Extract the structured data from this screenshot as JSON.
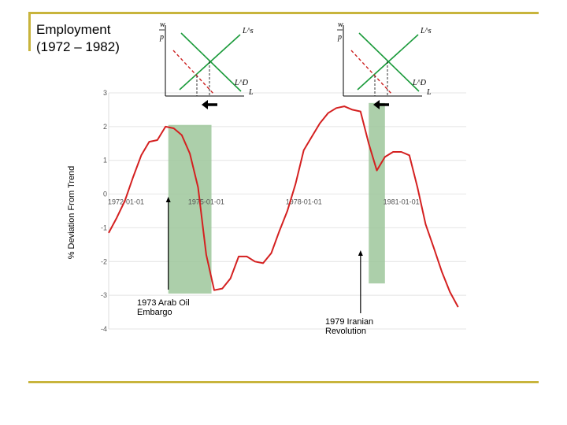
{
  "title_line1": "Employment",
  "title_line2": "(1972 – 1982)",
  "colors": {
    "line": "#d42020",
    "shade": "#9dc79b",
    "rule": "#c8b43c",
    "supply": "#1a9a3a",
    "demand": "#1a9a3a",
    "shifted_demand": "#cc2222"
  },
  "chart_data": {
    "type": "line",
    "title": "Employment (1972 – 1982)",
    "ylabel": "% Deviation From Trend",
    "xlabel": "",
    "ylim": [
      -4,
      3
    ],
    "yticks": [
      3,
      2,
      1,
      0,
      -1,
      -2,
      -3,
      -4
    ],
    "xlim": [
      "1972-01-01",
      "1982-12-31"
    ],
    "xticks": [
      "1972-01-01",
      "1975-01-01",
      "1978-01-01",
      "1981-01-01"
    ],
    "grid": true,
    "series": [
      {
        "x": [
          "1972-01-01",
          "1972-04-01",
          "1972-07-01",
          "1972-10-01",
          "1973-01-01",
          "1973-04-01",
          "1973-07-01",
          "1973-10-01",
          "1974-01-01",
          "1974-04-01",
          "1974-07-01",
          "1974-10-01",
          "1975-01-01",
          "1975-04-01",
          "1975-07-01",
          "1975-10-01",
          "1976-01-01",
          "1976-04-01",
          "1976-07-01",
          "1976-10-01",
          "1977-01-01",
          "1977-04-01",
          "1977-07-01",
          "1977-10-01",
          "1978-01-01",
          "1978-04-01",
          "1978-07-01",
          "1978-10-01",
          "1979-01-01",
          "1979-04-01",
          "1979-07-01",
          "1979-10-01",
          "1980-01-01",
          "1980-04-01",
          "1980-07-01",
          "1980-10-01",
          "1981-01-01",
          "1981-04-01",
          "1981-07-01",
          "1981-10-01",
          "1982-01-01",
          "1982-04-01",
          "1982-07-01",
          "1982-10-01"
        ],
        "values": [
          -1.15,
          -0.7,
          -0.2,
          0.5,
          1.15,
          1.55,
          1.6,
          2.0,
          1.95,
          1.75,
          1.2,
          0.2,
          -1.8,
          -2.85,
          -2.8,
          -2.5,
          -1.85,
          -1.85,
          -2.0,
          -2.05,
          -1.75,
          -1.1,
          -0.5,
          0.3,
          1.3,
          1.7,
          2.1,
          2.4,
          2.55,
          2.6,
          2.5,
          2.45,
          1.5,
          0.7,
          1.1,
          1.25,
          1.25,
          1.15,
          0.2,
          -0.9,
          -1.6,
          -2.3,
          -2.9,
          -3.35
        ]
      }
    ],
    "shaded_periods": [
      {
        "start": "1973-11-01",
        "end": "1975-03-01",
        "ymin": -2.95,
        "ymax": 2.05
      },
      {
        "start": "1980-01-01",
        "end": "1980-07-01",
        "ymin": -2.65,
        "ymax": 2.7
      }
    ],
    "annotations": [
      {
        "label_line1": "1973 Arab Oil",
        "label_line2": "Embargo",
        "x": "1973-11-01"
      },
      {
        "label_line1": "1979 Iranian",
        "label_line2": "Revolution",
        "x": "1979-10-01"
      }
    ]
  },
  "insets": [
    {
      "y_num": "w",
      "y_den": "p",
      "supply_label": "L^s",
      "demand_label": "L^D",
      "x_label": "L"
    },
    {
      "y_num": "w",
      "y_den": "p",
      "supply_label": "L^s",
      "demand_label": "L^D",
      "x_label": "L"
    }
  ]
}
